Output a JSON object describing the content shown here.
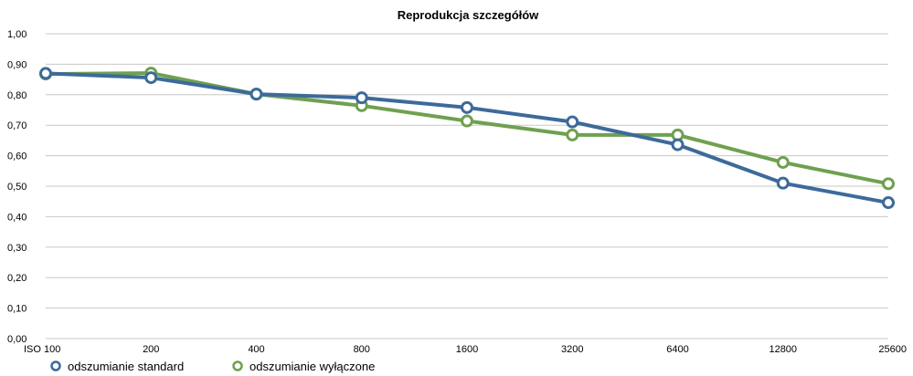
{
  "chart_data": {
    "type": "line",
    "title": "Reprodukcja szczegółów",
    "xlabel": "",
    "ylabel": "",
    "categories": [
      "ISO 100",
      "200",
      "400",
      "800",
      "1600",
      "3200",
      "6400",
      "12800",
      "25600"
    ],
    "ylim": [
      0,
      1
    ],
    "yticks": [
      "0,00",
      "0,10",
      "0,20",
      "0,30",
      "0,40",
      "0,50",
      "0,60",
      "0,70",
      "0,80",
      "0,90",
      "1,00"
    ],
    "grid": true,
    "legend_position": "bottom-left",
    "series": [
      {
        "name": "odszumianie standard",
        "color": "#3d6a9a",
        "values": [
          0.87,
          0.856,
          0.802,
          0.79,
          0.758,
          0.711,
          0.636,
          0.51,
          0.446
        ]
      },
      {
        "name": "odszumianie wyłączone",
        "color": "#6fa050",
        "values": [
          0.868,
          0.871,
          0.802,
          0.764,
          0.714,
          0.668,
          0.668,
          0.578,
          0.508
        ]
      }
    ]
  }
}
